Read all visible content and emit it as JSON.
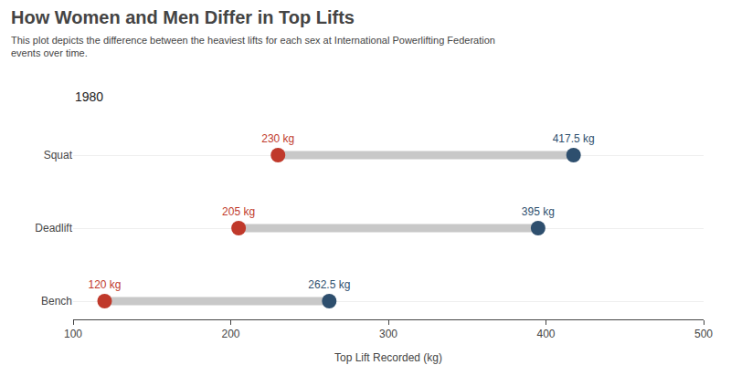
{
  "chart_data": {
    "type": "dumbbell",
    "title": "How Women and Men Differ in Top Lifts",
    "subtitle": "This plot depicts the difference between the heaviest lifts for each sex at International Powerlifting Federation\nevents over time.",
    "annotations": [
      "1980"
    ],
    "x_label": "Top Lift Recorded (kg)",
    "categories": [
      "Squat",
      "Deadlift",
      "Bench"
    ],
    "series": [
      {
        "color": "#c0392b",
        "values": [
          230,
          205,
          120
        ],
        "value_labels": [
          "230 kg",
          "205 kg",
          "120 kg"
        ]
      },
      {
        "color": "#2e4f6e",
        "values": [
          417.5,
          395,
          262.5
        ],
        "value_labels": [
          "417.5 kg",
          "395 kg",
          "262.5 kg"
        ]
      }
    ],
    "xlim": [
      100,
      500
    ],
    "xticks": [
      100,
      200,
      300,
      400,
      500
    ],
    "grid": "y",
    "data_labels": true
  }
}
